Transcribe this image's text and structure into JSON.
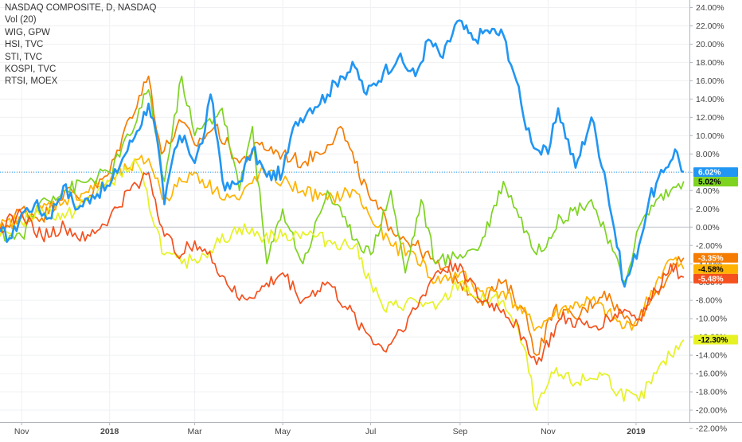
{
  "legend": [
    "NASDAQ COMPOSITE, D, NASDAQ",
    "Vol (20)",
    "WIG, GPW",
    "HSI, TVC",
    "STI, TVC",
    "KOSPI, TVC",
    "RTSI, MOEX"
  ],
  "chart_data": {
    "type": "line",
    "x_ticks": [
      {
        "label": "Nov",
        "date": "2017-11-01",
        "bold": false
      },
      {
        "label": "2018",
        "date": "2018-01-01",
        "bold": true
      },
      {
        "label": "Mar",
        "date": "2018-03-01",
        "bold": false
      },
      {
        "label": "May",
        "date": "2018-05-01",
        "bold": false
      },
      {
        "label": "Jul",
        "date": "2018-07-01",
        "bold": false
      },
      {
        "label": "Sep",
        "date": "2018-09-01",
        "bold": false
      },
      {
        "label": "Nov",
        "date": "2018-11-01",
        "bold": false
      },
      {
        "label": "2019",
        "date": "2019-01-01",
        "bold": true
      }
    ],
    "xlim": [
      "2017-10-17",
      "2019-02-07"
    ],
    "ylim": [
      -22,
      25
    ],
    "y_ticks": [
      24,
      22,
      20,
      18,
      16,
      14,
      12,
      10,
      8,
      6,
      4,
      2,
      0,
      -2,
      -4,
      -6,
      -8,
      -10,
      -12,
      -14,
      -16,
      -18,
      -20,
      -22
    ],
    "y_tick_labels": [
      "24.00%",
      "22.00%",
      "20.00%",
      "18.00%",
      "16.00%",
      "14.00%",
      "12.00%",
      "10.00%",
      "8.00%",
      "6.00%",
      "4.00%",
      "2.00%",
      "0.00%",
      "-2.00%",
      "-4.00%",
      "-6.00%",
      "-8.00%",
      "-10.00%",
      "-12.00%",
      "-14.00%",
      "-16.00%",
      "-18.00%",
      "-20.00%",
      "-22.00%"
    ],
    "grid": true,
    "zero_line": 0,
    "price_line": 6.02,
    "series": [
      {
        "color": "#2196f3",
        "width": 2.6,
        "badge": "6.02%",
        "badge_value": 6.02,
        "badge_text_color": "#ffffff",
        "points": [
          [
            "2017-10-17",
            -0.5
          ],
          [
            "2017-10-25",
            -1.2
          ],
          [
            "2017-11-01",
            1.5
          ],
          [
            "2017-11-10",
            2.5
          ],
          [
            "2017-11-20",
            1.0
          ],
          [
            "2017-11-30",
            4.5
          ],
          [
            "2017-12-10",
            2.0
          ],
          [
            "2017-12-20",
            3.5
          ],
          [
            "2018-01-01",
            4.5
          ],
          [
            "2018-01-10",
            7.5
          ],
          [
            "2018-01-20",
            10.5
          ],
          [
            "2018-01-28",
            13.5
          ],
          [
            "2018-02-02",
            10.5
          ],
          [
            "2018-02-08",
            2.5
          ],
          [
            "2018-02-15",
            8.5
          ],
          [
            "2018-02-22",
            10.0
          ],
          [
            "2018-03-01",
            7.0
          ],
          [
            "2018-03-08",
            10.5
          ],
          [
            "2018-03-12",
            14.5
          ],
          [
            "2018-03-22",
            4.0
          ],
          [
            "2018-04-01",
            5.0
          ],
          [
            "2018-04-10",
            8.5
          ],
          [
            "2018-04-20",
            5.5
          ],
          [
            "2018-05-01",
            6.0
          ],
          [
            "2018-05-10",
            11.5
          ],
          [
            "2018-05-20",
            13.0
          ],
          [
            "2018-06-01",
            14.5
          ],
          [
            "2018-06-10",
            16.5
          ],
          [
            "2018-06-20",
            17.5
          ],
          [
            "2018-06-28",
            14.5
          ],
          [
            "2018-07-10",
            17.0
          ],
          [
            "2018-07-20",
            18.5
          ],
          [
            "2018-08-01",
            16.5
          ],
          [
            "2018-08-10",
            20.5
          ],
          [
            "2018-08-20",
            18.5
          ],
          [
            "2018-08-30",
            22.5
          ],
          [
            "2018-09-10",
            20.5
          ],
          [
            "2018-09-20",
            21.5
          ],
          [
            "2018-10-01",
            21.0
          ],
          [
            "2018-10-10",
            16.0
          ],
          [
            "2018-10-15",
            12.0
          ],
          [
            "2018-10-24",
            8.5
          ],
          [
            "2018-11-01",
            8.0
          ],
          [
            "2018-11-08",
            13.0
          ],
          [
            "2018-11-20",
            6.5
          ],
          [
            "2018-12-01",
            12.0
          ],
          [
            "2018-12-10",
            6.0
          ],
          [
            "2018-12-24",
            -6.5
          ],
          [
            "2019-01-03",
            -2.0
          ],
          [
            "2019-01-10",
            3.0
          ],
          [
            "2019-01-20",
            6.0
          ],
          [
            "2019-01-28",
            8.5
          ],
          [
            "2019-02-03",
            6.02
          ]
        ]
      },
      {
        "color": "#f57c00",
        "width": 1.7,
        "badge": "-3.35%",
        "badge_value": -3.35,
        "badge_text_color": "#ffffff",
        "points": [
          [
            "2017-10-17",
            -0.5
          ],
          [
            "2017-11-01",
            2.0
          ],
          [
            "2017-11-15",
            1.0
          ],
          [
            "2017-12-01",
            4.0
          ],
          [
            "2017-12-15",
            3.0
          ],
          [
            "2018-01-01",
            6.0
          ],
          [
            "2018-01-15",
            12.0
          ],
          [
            "2018-01-28",
            16.5
          ],
          [
            "2018-02-06",
            8.0
          ],
          [
            "2018-02-20",
            11.5
          ],
          [
            "2018-03-01",
            9.0
          ],
          [
            "2018-03-15",
            11.0
          ],
          [
            "2018-04-01",
            7.0
          ],
          [
            "2018-04-15",
            9.0
          ],
          [
            "2018-05-01",
            8.0
          ],
          [
            "2018-05-15",
            7.0
          ],
          [
            "2018-06-01",
            9.0
          ],
          [
            "2018-06-10",
            11.0
          ],
          [
            "2018-06-20",
            7.0
          ],
          [
            "2018-07-01",
            3.0
          ],
          [
            "2018-07-15",
            0.0
          ],
          [
            "2018-08-01",
            -2.0
          ],
          [
            "2018-08-15",
            -4.0
          ],
          [
            "2018-09-01",
            -6.0
          ],
          [
            "2018-09-15",
            -8.0
          ],
          [
            "2018-10-01",
            -6.0
          ],
          [
            "2018-10-15",
            -9.0
          ],
          [
            "2018-10-24",
            -14.0
          ],
          [
            "2018-11-05",
            -9.0
          ],
          [
            "2018-11-20",
            -10.0
          ],
          [
            "2018-12-10",
            -7.0
          ],
          [
            "2018-12-24",
            -10.0
          ],
          [
            "2019-01-03",
            -10.0
          ],
          [
            "2019-01-15",
            -7.0
          ],
          [
            "2019-01-25",
            -5.0
          ],
          [
            "2019-02-03",
            -3.35
          ]
        ]
      },
      {
        "color": "#ffb300",
        "width": 1.7,
        "badge": "-4.58%",
        "badge_value": -4.58,
        "badge_text_color": "#000000",
        "points": [
          [
            "2017-10-17",
            0.0
          ],
          [
            "2017-11-01",
            1.0
          ],
          [
            "2017-11-15",
            2.0
          ],
          [
            "2017-12-01",
            3.0
          ],
          [
            "2018-01-01",
            5.0
          ],
          [
            "2018-01-15",
            6.5
          ],
          [
            "2018-01-28",
            7.5
          ],
          [
            "2018-02-08",
            3.0
          ],
          [
            "2018-02-20",
            5.0
          ],
          [
            "2018-03-01",
            6.0
          ],
          [
            "2018-03-15",
            4.0
          ],
          [
            "2018-04-01",
            3.0
          ],
          [
            "2018-04-15",
            6.0
          ],
          [
            "2018-05-01",
            5.0
          ],
          [
            "2018-05-15",
            4.0
          ],
          [
            "2018-06-01",
            3.0
          ],
          [
            "2018-06-20",
            4.0
          ],
          [
            "2018-07-01",
            1.0
          ],
          [
            "2018-07-15",
            -2.0
          ],
          [
            "2018-08-01",
            -3.0
          ],
          [
            "2018-08-15",
            -6.0
          ],
          [
            "2018-09-01",
            -5.0
          ],
          [
            "2018-09-15",
            -7.0
          ],
          [
            "2018-10-01",
            -7.0
          ],
          [
            "2018-10-24",
            -11.0
          ],
          [
            "2018-11-10",
            -9.0
          ],
          [
            "2018-12-01",
            -8.0
          ],
          [
            "2018-12-24",
            -11.0
          ],
          [
            "2019-01-03",
            -10.0
          ],
          [
            "2019-01-15",
            -6.0
          ],
          [
            "2019-01-25",
            -3.5
          ],
          [
            "2019-02-03",
            -4.58
          ]
        ]
      },
      {
        "color": "#7ed321",
        "width": 1.7,
        "badge": "5.02%",
        "badge_value": 5.02,
        "badge_text_color": "#000000",
        "points": [
          [
            "2017-10-17",
            -1.0
          ],
          [
            "2017-11-01",
            -1.0
          ],
          [
            "2017-11-15",
            3.0
          ],
          [
            "2017-12-01",
            4.0
          ],
          [
            "2018-01-01",
            6.0
          ],
          [
            "2018-01-15",
            10.0
          ],
          [
            "2018-01-28",
            15.0
          ],
          [
            "2018-02-08",
            5.0
          ],
          [
            "2018-02-20",
            16.5
          ],
          [
            "2018-03-01",
            10.0
          ],
          [
            "2018-03-20",
            13.0
          ],
          [
            "2018-04-01",
            4.0
          ],
          [
            "2018-04-10",
            11.0
          ],
          [
            "2018-04-20",
            -4.0
          ],
          [
            "2018-05-01",
            2.0
          ],
          [
            "2018-05-15",
            -4.0
          ],
          [
            "2018-06-01",
            4.0
          ],
          [
            "2018-06-15",
            0.0
          ],
          [
            "2018-07-01",
            -3.0
          ],
          [
            "2018-07-15",
            4.0
          ],
          [
            "2018-07-25",
            -5.0
          ],
          [
            "2018-08-05",
            3.0
          ],
          [
            "2018-08-15",
            -4.0
          ],
          [
            "2018-09-01",
            -3.0
          ],
          [
            "2018-09-15",
            -2.0
          ],
          [
            "2018-10-01",
            5.0
          ],
          [
            "2018-10-10",
            2.0
          ],
          [
            "2018-10-24",
            -3.0
          ],
          [
            "2018-11-10",
            1.0
          ],
          [
            "2018-12-01",
            3.0
          ],
          [
            "2018-12-24",
            -6.0
          ],
          [
            "2019-01-03",
            0.0
          ],
          [
            "2019-01-15",
            3.0
          ],
          [
            "2019-01-25",
            4.0
          ],
          [
            "2019-02-03",
            5.02
          ]
        ]
      },
      {
        "color": "#e6f224",
        "width": 1.7,
        "badge": "-12.30%",
        "badge_value": -12.3,
        "badge_text_color": "#000000",
        "points": [
          [
            "2017-10-17",
            -1.0
          ],
          [
            "2017-11-01",
            0.5
          ],
          [
            "2017-11-15",
            2.0
          ],
          [
            "2017-12-01",
            1.0
          ],
          [
            "2018-01-01",
            5.0
          ],
          [
            "2018-01-20",
            7.0
          ],
          [
            "2018-02-08",
            -3.0
          ],
          [
            "2018-02-20",
            -4.0
          ],
          [
            "2018-03-01",
            -3.5
          ],
          [
            "2018-03-15",
            -2.0
          ],
          [
            "2018-04-01",
            0.0
          ],
          [
            "2018-04-15",
            -1.0
          ],
          [
            "2018-05-01",
            -1.0
          ],
          [
            "2018-05-15",
            -0.5
          ],
          [
            "2018-06-01",
            -1.5
          ],
          [
            "2018-06-20",
            -2.0
          ],
          [
            "2018-07-01",
            -6.0
          ],
          [
            "2018-07-10",
            -9.0
          ],
          [
            "2018-08-01",
            -8.0
          ],
          [
            "2018-08-15",
            -9.0
          ],
          [
            "2018-09-01",
            -6.0
          ],
          [
            "2018-09-15",
            -8.0
          ],
          [
            "2018-10-01",
            -8.0
          ],
          [
            "2018-10-15",
            -13.0
          ],
          [
            "2018-10-24",
            -20.0
          ],
          [
            "2018-11-05",
            -16.0
          ],
          [
            "2018-11-20",
            -17.0
          ],
          [
            "2018-12-10",
            -16.0
          ],
          [
            "2018-12-20",
            -18.0
          ],
          [
            "2019-01-03",
            -19.0
          ],
          [
            "2019-01-15",
            -16.0
          ],
          [
            "2019-01-25",
            -14.0
          ],
          [
            "2019-02-03",
            -12.3
          ]
        ]
      },
      {
        "color": "#f4511e",
        "width": 1.7,
        "badge": "-5.48%",
        "badge_value": -5.48,
        "badge_text_color": "#ffffff",
        "points": [
          [
            "2017-10-17",
            0.0
          ],
          [
            "2017-11-01",
            1.5
          ],
          [
            "2017-11-15",
            -1.0
          ],
          [
            "2017-12-01",
            0.0
          ],
          [
            "2017-12-15",
            -1.5
          ],
          [
            "2018-01-01",
            1.0
          ],
          [
            "2018-01-15",
            4.0
          ],
          [
            "2018-01-28",
            6.0
          ],
          [
            "2018-02-08",
            -1.0
          ],
          [
            "2018-02-20",
            -3.0
          ],
          [
            "2018-03-01",
            -1.5
          ],
          [
            "2018-03-15",
            -4.0
          ],
          [
            "2018-04-01",
            -8.0
          ],
          [
            "2018-04-15",
            -7.0
          ],
          [
            "2018-05-01",
            -5.0
          ],
          [
            "2018-05-15",
            -8.0
          ],
          [
            "2018-06-01",
            -6.0
          ],
          [
            "2018-06-15",
            -9.0
          ],
          [
            "2018-07-01",
            -12.0
          ],
          [
            "2018-07-10",
            -13.5
          ],
          [
            "2018-08-01",
            -9.0
          ],
          [
            "2018-08-15",
            -5.0
          ],
          [
            "2018-09-01",
            -4.0
          ],
          [
            "2018-09-15",
            -8.0
          ],
          [
            "2018-10-01",
            -9.0
          ],
          [
            "2018-10-15",
            -12.0
          ],
          [
            "2018-10-24",
            -15.0
          ],
          [
            "2018-11-10",
            -10.0
          ],
          [
            "2018-12-01",
            -11.0
          ],
          [
            "2018-12-24",
            -9.0
          ],
          [
            "2019-01-03",
            -10.0
          ],
          [
            "2019-01-15",
            -7.0
          ],
          [
            "2019-01-25",
            -4.0
          ],
          [
            "2019-02-03",
            -5.48
          ]
        ]
      }
    ]
  }
}
